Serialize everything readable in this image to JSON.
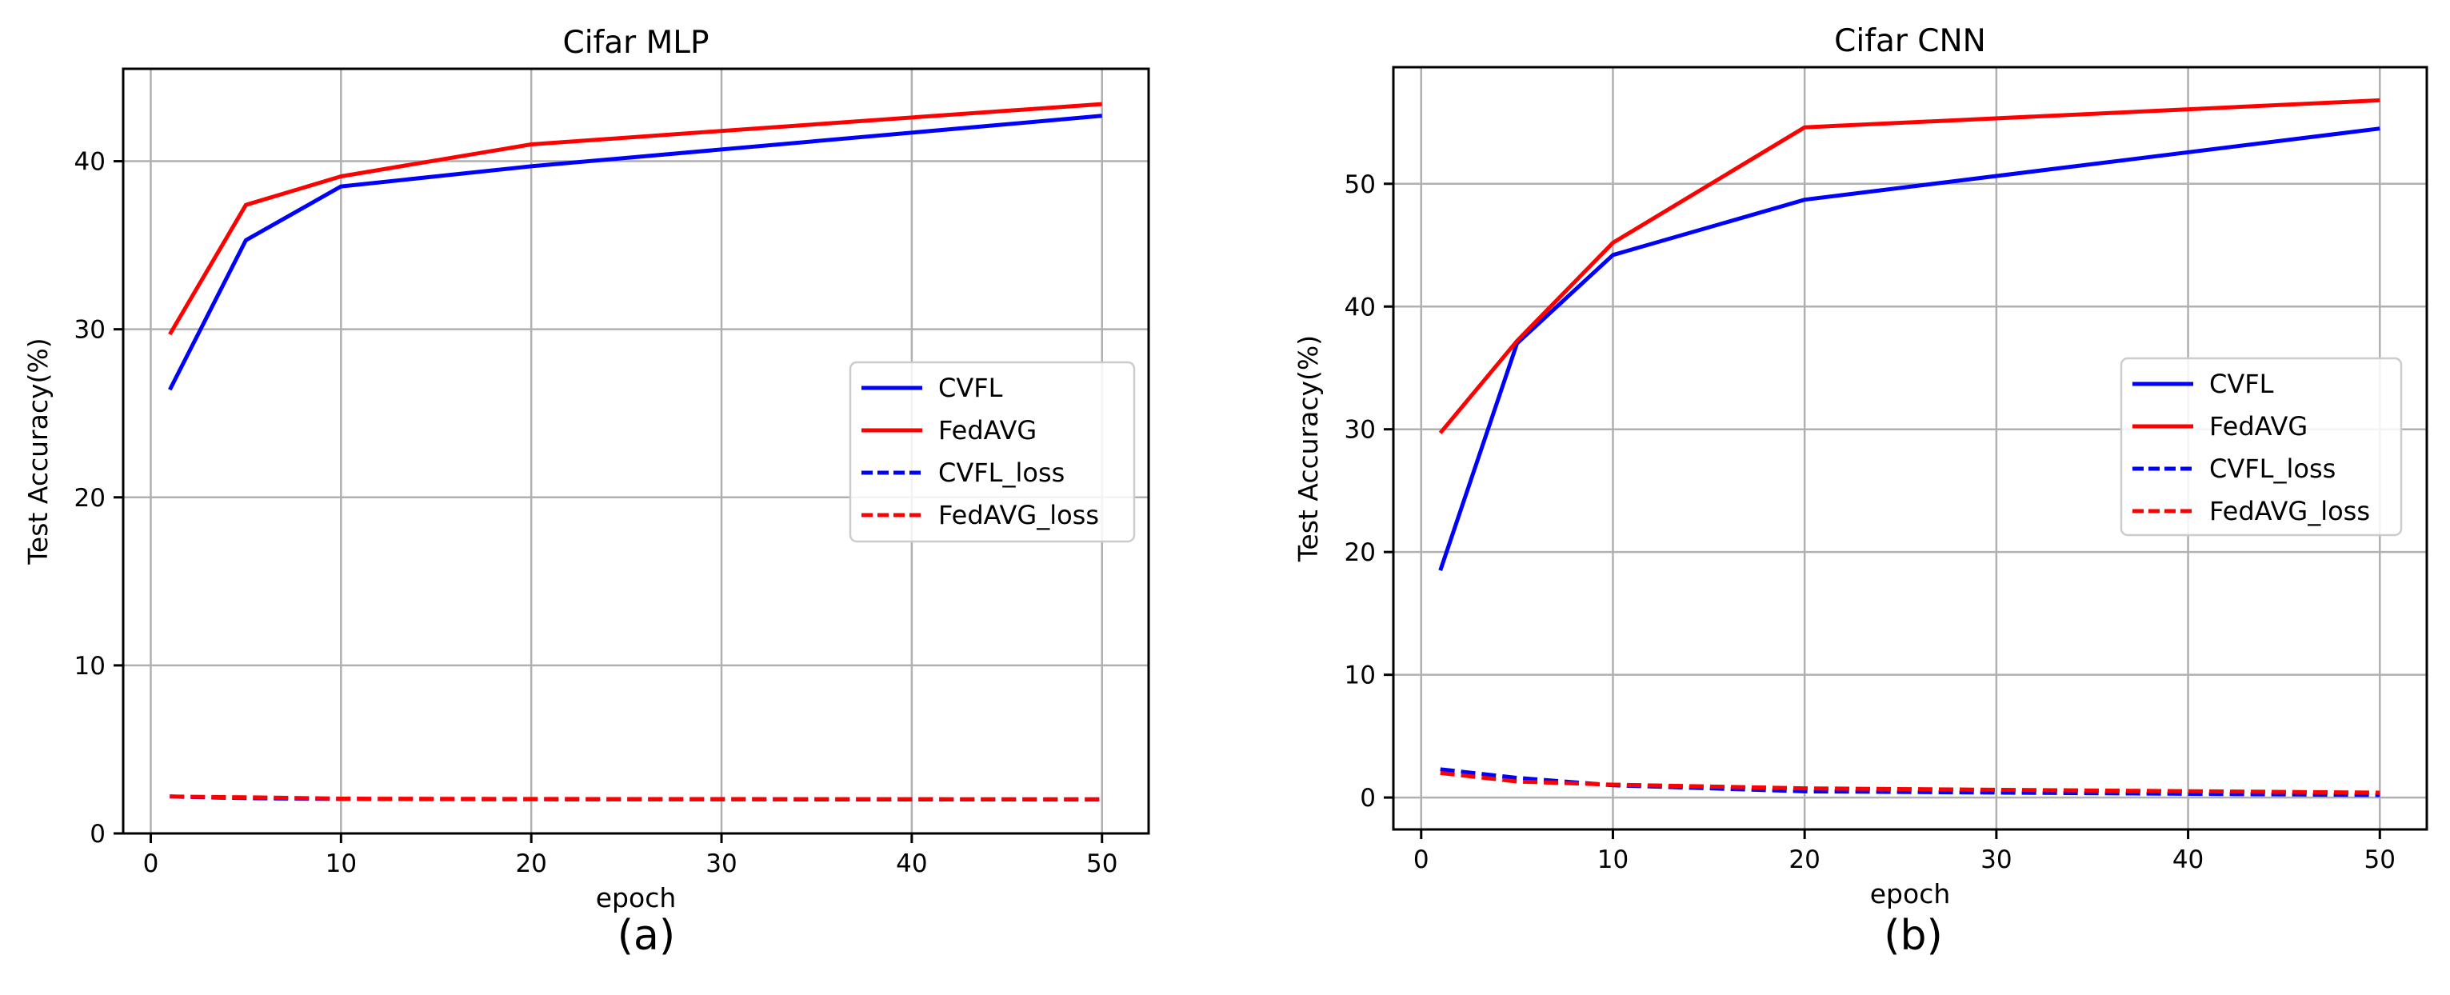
{
  "charts": [
    {
      "caption": "(a)",
      "chart_data": {
        "type": "line",
        "title": "Cifar MLP",
        "xlabel": "epoch",
        "ylabel": "Test Accuracy(%)",
        "xlim": [
          -1.45,
          52.45
        ],
        "ylim": [
          0,
          45.5
        ],
        "xticks": [
          0,
          10,
          20,
          30,
          40,
          50
        ],
        "yticks": [
          0,
          10,
          20,
          30,
          40
        ],
        "grid": true,
        "legend_position": "center-right",
        "x": [
          1,
          5,
          10,
          20,
          50
        ],
        "series": [
          {
            "name": "CVFL",
            "color": "#0000ff",
            "dash": "solid",
            "values": [
              26.4,
              35.3,
              38.5,
              39.7,
              42.7
            ]
          },
          {
            "name": "FedAVG",
            "color": "#ff0000",
            "dash": "solid",
            "values": [
              29.7,
              37.4,
              39.1,
              41.0,
              43.4
            ]
          },
          {
            "name": "CVFL_loss",
            "color": "#0000ff",
            "dash": "dashed",
            "values": [
              2.2,
              2.1,
              2.05,
              2.03,
              2.02
            ]
          },
          {
            "name": "FedAVG_loss",
            "color": "#ff0000",
            "dash": "dashed",
            "values": [
              2.2,
              2.15,
              2.07,
              2.05,
              2.03
            ]
          }
        ]
      }
    },
    {
      "caption": "(b)",
      "chart_data": {
        "type": "line",
        "title": "Cifar CNN",
        "xlabel": "epoch",
        "ylabel": "Test Accuracy(%)",
        "xlim": [
          -1.45,
          52.45
        ],
        "ylim": [
          -2.6,
          59.5
        ],
        "xticks": [
          0,
          10,
          20,
          30,
          40,
          50
        ],
        "yticks": [
          0,
          10,
          20,
          30,
          40,
          50
        ],
        "grid": true,
        "legend_position": "center-right",
        "x": [
          1,
          5,
          10,
          20,
          50
        ],
        "series": [
          {
            "name": "CVFL",
            "color": "#0000ff",
            "dash": "solid",
            "values": [
              18.5,
              37.0,
              44.2,
              48.7,
              54.5
            ]
          },
          {
            "name": "FedAVG",
            "color": "#ff0000",
            "dash": "solid",
            "values": [
              29.7,
              37.2,
              45.2,
              54.6,
              56.8
            ]
          },
          {
            "name": "CVFL_loss",
            "color": "#0000ff",
            "dash": "dashed",
            "values": [
              2.3,
              1.6,
              1.0,
              0.5,
              0.2
            ]
          },
          {
            "name": "FedAVG_loss",
            "color": "#ff0000",
            "dash": "dashed",
            "values": [
              2.0,
              1.3,
              1.05,
              0.75,
              0.4
            ]
          }
        ]
      }
    }
  ]
}
